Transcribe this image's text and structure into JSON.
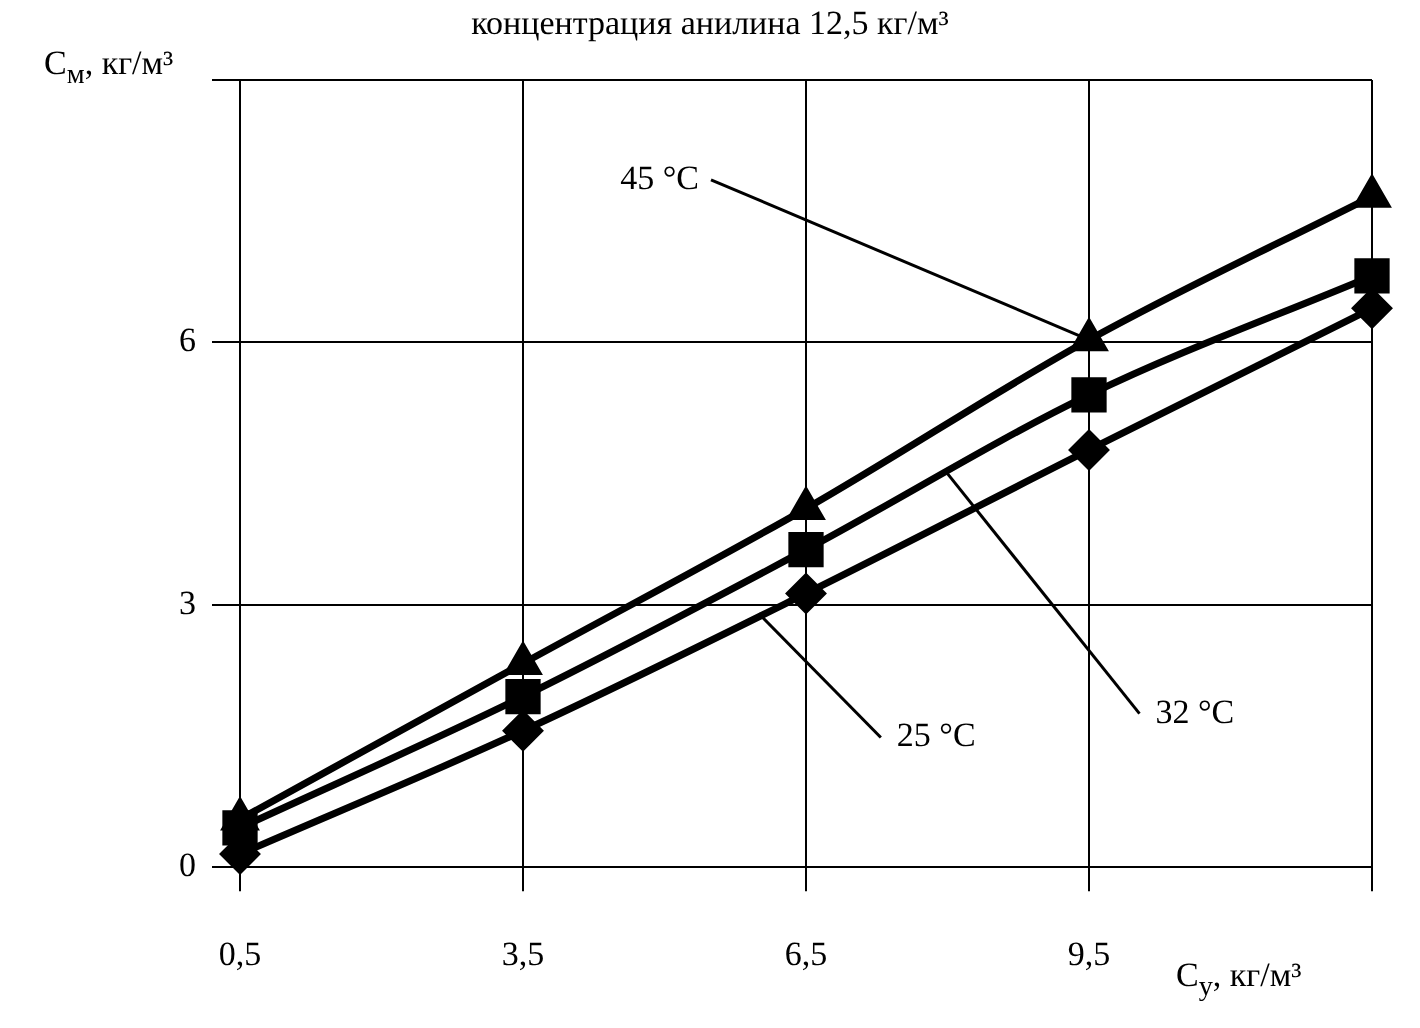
{
  "chart_data": {
    "type": "line",
    "title": "концентрация анилина 12,5 кг/м³",
    "xlabel": "C$_{у}$, кг/м³",
    "ylabel": "C$_{м}$, кг/м³",
    "x": [
      0.5,
      3.5,
      6.5,
      9.5,
      12.5
    ],
    "series": [
      {
        "color": "#000000",
        "marker": "triangle",
        "values": [
          0.55,
          2.33,
          4.1,
          6.03,
          7.67
        ]
      },
      {
        "color": "#000000",
        "marker": "square",
        "values": [
          0.45,
          1.95,
          3.63,
          5.4,
          6.76
        ]
      },
      {
        "color": "#000000",
        "marker": "diamond",
        "values": [
          0.15,
          1.56,
          3.13,
          4.77,
          6.39
        ]
      }
    ],
    "annotations": [
      {
        "text": "45 °C",
        "x": 9.5,
        "y": 6.03
      },
      {
        "text": "32 °C",
        "x": 8,
        "y": 4.5
      },
      {
        "text": "25 °C",
        "x": 6,
        "y": 2.9
      }
    ],
    "xlim": [
      0.5,
      12.5
    ],
    "xticks": [
      {
        "value": 0.5,
        "label": "0,5"
      },
      {
        "value": 3.5,
        "label": "3,5"
      },
      {
        "value": 6.5,
        "label": "6,5"
      },
      {
        "value": 9.5,
        "label": "9,5"
      },
      {
        "value": 12.5,
        "label": null
      }
    ],
    "ylim": [
      0,
      9
    ],
    "yticks": [
      0,
      3,
      6,
      {
        "value": 9,
        "label": null
      }
    ],
    "grid": true,
    "legend": false,
    "line_style": "solid"
  }
}
